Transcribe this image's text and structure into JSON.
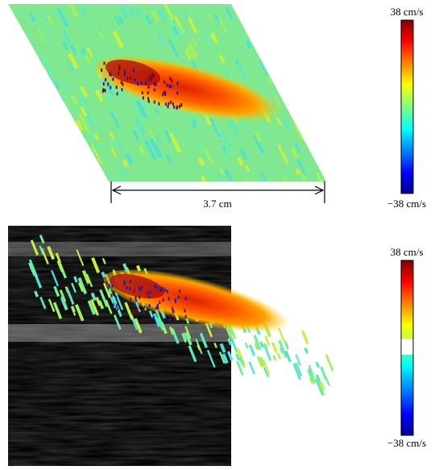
{
  "top_panel": {
    "colorbar": {
      "max_label": "38 cm/s",
      "min_label": "−38 cm/s"
    },
    "scale_bar": {
      "label": "3.7 cm"
    }
  },
  "bottom_panel": {
    "colorbar": {
      "max_label": "38 cm/s",
      "min_label": "−38 cm/s"
    }
  }
}
